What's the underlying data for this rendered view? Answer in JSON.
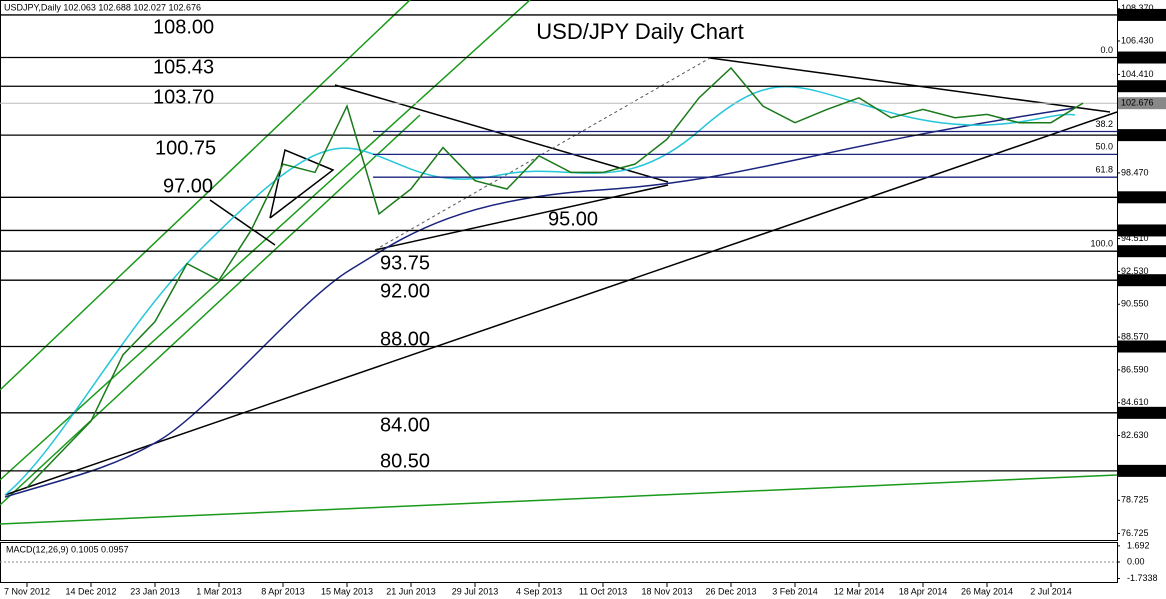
{
  "chart_data": {
    "type": "line",
    "header": "USDJPY,Daily  102.063 102.688 102.027 102.676",
    "title": "USD/JPY Daily Chart",
    "indicator_label": "MACD(12,26,9) 0.1005 0.0957",
    "categories": [
      "7 Nov 2012",
      null,
      "14 Dec 2012",
      null,
      "23 Jan 2013",
      null,
      "1 Mar 2013",
      null,
      "8 Apr 2013",
      null,
      "15 May 2013",
      null,
      "21 Jun 2013",
      null,
      "29 Jul 2013",
      null,
      "4 Sep 2013",
      null,
      "11 Oct 2013",
      null,
      "18 Nov 2013",
      null,
      "26 Dec 2013",
      null,
      "3 Feb 2014",
      null,
      "12 Mar 2014",
      null,
      "18 Apr 2014",
      null,
      "26 May 2014",
      null,
      "2 Jul 2014",
      null
    ],
    "series": [
      {
        "name": "USDJPY",
        "color": "#1a7a1a",
        "values": [
          79.5,
          81.5,
          83.5,
          87.5,
          89.5,
          93,
          92,
          95,
          99,
          98.5,
          102.5,
          96,
          97.5,
          100,
          98,
          97.5,
          99.5,
          98.5,
          98.5,
          99,
          100.5,
          103,
          104.8,
          102.5,
          101.5,
          102.3,
          103,
          101.8,
          102.3,
          101.8,
          102,
          101.5,
          101.5,
          102.68
        ]
      }
    ],
    "levels": {
      "values": [
        108,
        105.43,
        103.7,
        100.75,
        97,
        95,
        93.75,
        92,
        88,
        84,
        80.5
      ],
      "value_labels": [
        "108.00",
        "105.43",
        "103.70",
        "100.75",
        "97.00",
        "95.00",
        "93.75",
        "92.00",
        "88.00",
        "84.00",
        "80.50"
      ],
      "axis_labels": [
        "108.000",
        "105.430",
        "103.700",
        "100.750",
        "97.000",
        "95.000",
        "93.750",
        "92.000",
        "88.000",
        "84.000",
        "80.500"
      ]
    },
    "last_price": 102.676,
    "fibonacci": {
      "high": 105.43,
      "low": 93.75,
      "ratios": [
        {
          "value": 0,
          "label": "0.0"
        },
        {
          "value": 38.2,
          "label": "38.2"
        },
        {
          "value": 50,
          "label": "50.0"
        },
        {
          "value": 61.8,
          "label": "61.8"
        },
        {
          "value": 100,
          "label": "100.0"
        }
      ]
    },
    "ylim": [
      76.33,
      108.9
    ],
    "yticks": [
      {
        "value": 108.37,
        "label": "108.370"
      },
      {
        "value": 106.43,
        "label": "106.430"
      },
      {
        "value": 104.41,
        "label": "104.410"
      },
      {
        "value": 98.47,
        "label": "98.470"
      },
      {
        "value": 94.51,
        "label": "94.510"
      },
      {
        "value": 92.53,
        "label": "92.530"
      },
      {
        "value": 90.55,
        "label": "90.550"
      },
      {
        "value": 88.57,
        "label": "88.570"
      },
      {
        "value": 86.59,
        "label": "86.590"
      },
      {
        "value": 84.61,
        "label": "84.610"
      },
      {
        "value": 82.63,
        "label": "82.630"
      },
      {
        "value": 78.725,
        "label": "78.725"
      },
      {
        "value": 76.725,
        "label": "76.725"
      }
    ],
    "macd_ylim": [
      -2.1,
      2.1
    ],
    "macd_yticks": [
      1.692,
      {
        "value": 0,
        "label": "0.00"
      },
      -1.7338
    ]
  }
}
